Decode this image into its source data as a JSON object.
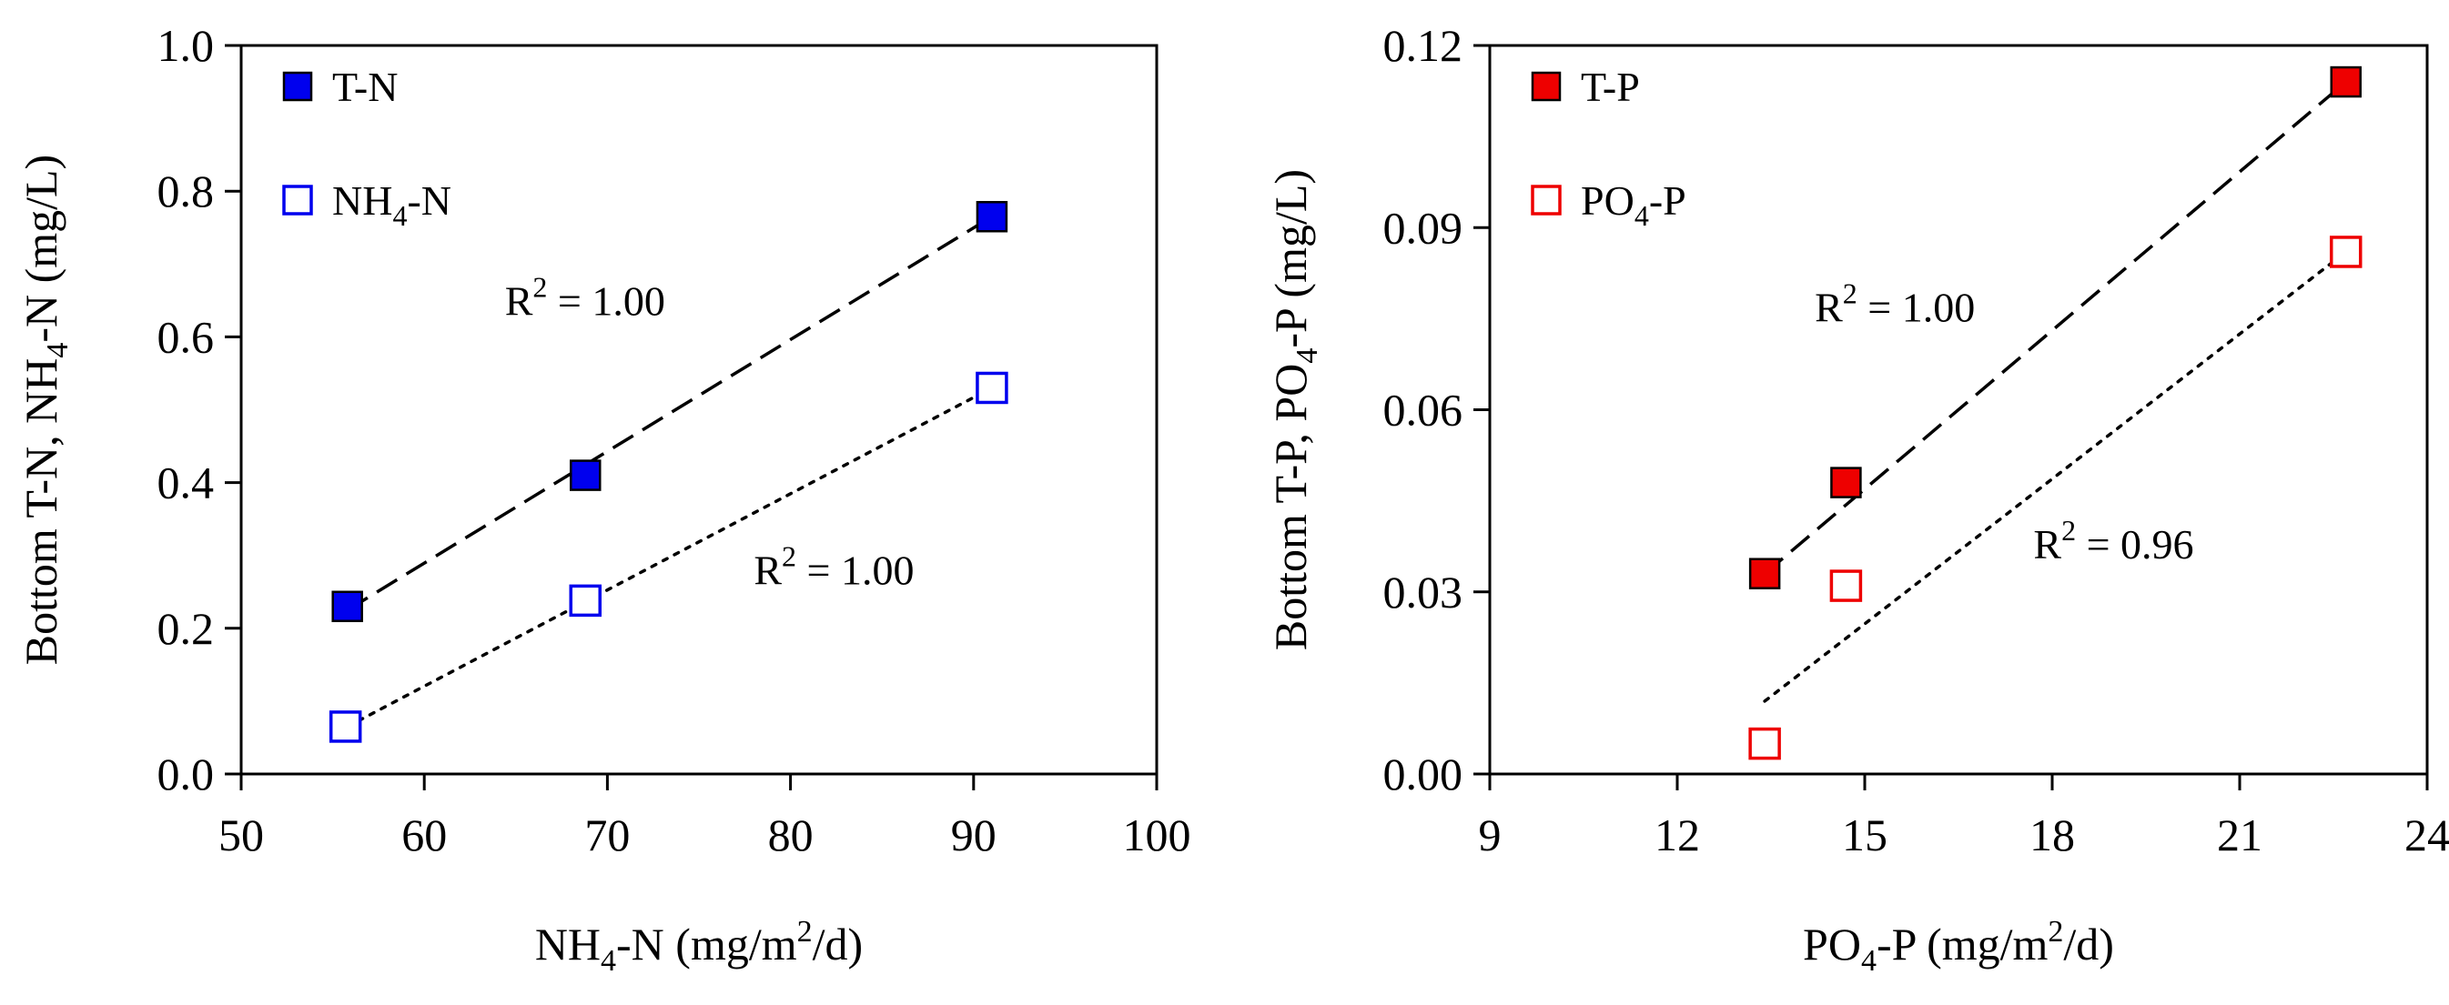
{
  "colors": {
    "nitrogen": "#0000ee",
    "phosphorus": "#ee0000",
    "axis": "#000000"
  },
  "chart_data": [
    {
      "type": "scatter",
      "xlabel": {
        "prefix": "NH",
        "sub": "4",
        "middle": "-N (mg/m",
        "sup": "2",
        "suffix": "/d)"
      },
      "ylabel": {
        "prefix": "Bottom T-N, NH",
        "sub": "4",
        "suffix": "-N (mg/L)"
      },
      "xlim": [
        50,
        100
      ],
      "ylim": [
        0.0,
        1.0
      ],
      "xticks": [
        "50",
        "60",
        "70",
        "80",
        "90",
        "100"
      ],
      "yticks": [
        "0.0",
        "0.2",
        "0.4",
        "0.6",
        "0.8",
        "1.0"
      ],
      "grid": false,
      "legend_position": "top-left",
      "series": [
        {
          "name": "T-N",
          "legend": {
            "prefix": "T-N",
            "sub": "",
            "suffix": ""
          },
          "marker": "filled-square",
          "fit_line": "dashed",
          "points": [
            [
              55.8,
              0.23
            ],
            [
              68.8,
              0.41
            ],
            [
              91.0,
              0.765
            ]
          ],
          "fit": [
            [
              55.8,
              0.225
            ],
            [
              91.0,
              0.765
            ]
          ],
          "annotation": {
            "text": "R",
            "sup": "2",
            "rest": " = 1.00",
            "x": 64.4,
            "y": 0.63
          }
        },
        {
          "name": "NH4-N",
          "legend": {
            "prefix": "NH",
            "sub": "4",
            "suffix": "-N"
          },
          "marker": "open-square",
          "fit_line": "dotted",
          "points": [
            [
              55.7,
              0.065
            ],
            [
              68.8,
              0.238
            ],
            [
              91.0,
              0.53
            ]
          ],
          "fit": [
            [
              55.8,
              0.065
            ],
            [
              91.0,
              0.53
            ]
          ],
          "annotation": {
            "text": "R",
            "sup": "2",
            "rest": " = 1.00",
            "x": 78.0,
            "y": 0.26
          }
        }
      ]
    },
    {
      "type": "scatter",
      "xlabel": {
        "prefix": "PO",
        "sub": "4",
        "middle": "-P (mg/m",
        "sup": "2",
        "suffix": "/d)"
      },
      "ylabel": {
        "prefix": "Bottom T-P, PO",
        "sub": "4",
        "suffix": "-P (mg/L)"
      },
      "xlim": [
        9,
        24
      ],
      "ylim": [
        0.0,
        0.12
      ],
      "xticks": [
        "9",
        "12",
        "15",
        "18",
        "21",
        "24"
      ],
      "yticks": [
        "0.00",
        "0.03",
        "0.06",
        "0.09",
        "0.12"
      ],
      "grid": false,
      "legend_position": "top-left",
      "series": [
        {
          "name": "T-P",
          "legend": {
            "prefix": "T-P",
            "sub": "",
            "suffix": ""
          },
          "marker": "filled-square",
          "fit_line": "dashed",
          "points": [
            [
              13.4,
              0.033
            ],
            [
              14.7,
              0.048
            ],
            [
              22.7,
              0.114
            ]
          ],
          "fit": [
            [
              13.4,
              0.033
            ],
            [
              22.7,
              0.114
            ]
          ],
          "annotation": {
            "text": "R",
            "sup": "2",
            "rest": " = 1.00",
            "x": 14.2,
            "y": 0.0745
          }
        },
        {
          "name": "PO4-P",
          "legend": {
            "prefix": "PO",
            "sub": "4",
            "suffix": "-P"
          },
          "marker": "open-square",
          "fit_line": "dotted",
          "points": [
            [
              13.4,
              0.005
            ],
            [
              14.7,
              0.031
            ],
            [
              22.7,
              0.086
            ]
          ],
          "fit": [
            [
              13.4,
              0.012
            ],
            [
              22.7,
              0.086
            ]
          ],
          "annotation": {
            "text": "R",
            "sup": "2",
            "rest": " = 0.96",
            "x": 17.7,
            "y": 0.0355
          }
        }
      ]
    }
  ]
}
